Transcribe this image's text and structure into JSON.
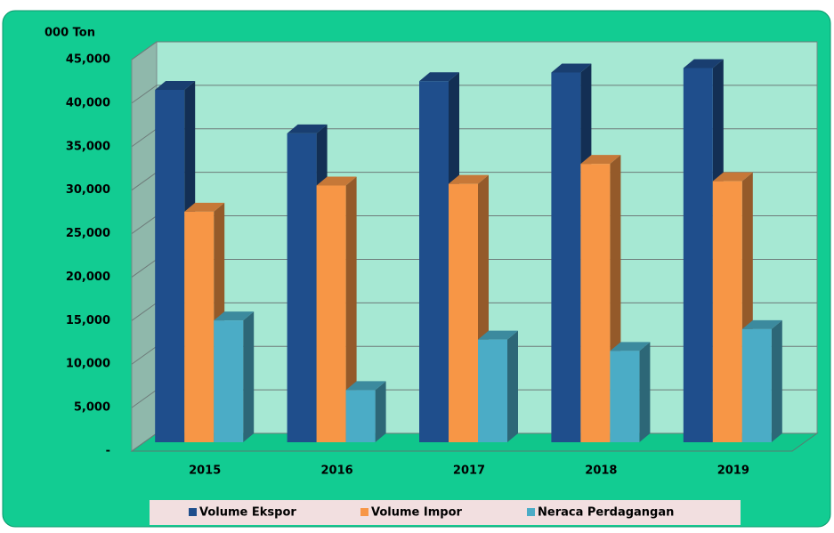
{
  "chart_data": {
    "type": "bar3d",
    "y_axis_label": "000 Ton",
    "categories": [
      "2015",
      "2016",
      "2017",
      "2018",
      "2019"
    ],
    "series": [
      {
        "name": "Volume Ekspor",
        "color": "#1f4e8c",
        "values": [
          40500,
          35500,
          41500,
          42500,
          43000
        ]
      },
      {
        "name": "Volume Impor",
        "color": "#f79646",
        "values": [
          26500,
          29500,
          29700,
          32000,
          30000
        ]
      },
      {
        "name": "Neraca Perdagangan",
        "color": "#4bacc6",
        "values": [
          14000,
          6000,
          11800,
          10500,
          13000
        ]
      }
    ],
    "ylim": [
      0,
      45000
    ],
    "yticks": [
      {
        "value": 0,
        "label": "-"
      },
      {
        "value": 5000,
        "label": "5,000"
      },
      {
        "value": 10000,
        "label": "10,000"
      },
      {
        "value": 15000,
        "label": "15,000"
      },
      {
        "value": 20000,
        "label": "20,000"
      },
      {
        "value": 25000,
        "label": "25,000"
      },
      {
        "value": 30000,
        "label": "30,000"
      },
      {
        "value": 35000,
        "label": "35,000"
      },
      {
        "value": 40000,
        "label": "40,000"
      },
      {
        "value": 45000,
        "label": "45,000"
      }
    ],
    "grid": true,
    "legend": "bottom"
  }
}
